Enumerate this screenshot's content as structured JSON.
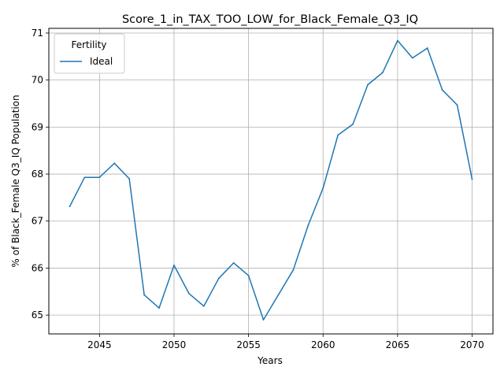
{
  "chart_data": {
    "type": "line",
    "title": "Score_1_in_TAX_TOO_LOW_for_Black_Female_Q3_IQ",
    "xlabel": "Years",
    "ylabel": "% of Black_Female Q3_IQ Population",
    "xlim": [
      2041.6,
      2071.4
    ],
    "ylim": [
      64.6,
      71.1
    ],
    "xticks": [
      2045,
      2050,
      2055,
      2060,
      2065,
      2070
    ],
    "yticks": [
      65,
      66,
      67,
      68,
      69,
      70,
      71
    ],
    "grid": true,
    "legend": {
      "title": "Fertility",
      "placement": "top-left"
    },
    "series": [
      {
        "name": "Ideal",
        "color": "#1f77b4",
        "x": [
          2043,
          2044,
          2045,
          2046,
          2047,
          2048,
          2049,
          2050,
          2051,
          2052,
          2053,
          2054,
          2055,
          2056,
          2057,
          2058,
          2059,
          2060,
          2061,
          2062,
          2063,
          2064,
          2065,
          2066,
          2067,
          2068,
          2069,
          2070
        ],
        "y": [
          67.31,
          67.93,
          67.93,
          68.23,
          67.9,
          65.43,
          65.15,
          66.06,
          65.46,
          65.19,
          65.78,
          66.11,
          65.84,
          64.9,
          65.43,
          65.96,
          66.91,
          67.7,
          68.83,
          69.06,
          69.9,
          70.16,
          70.84,
          70.47,
          70.68,
          69.79,
          69.47,
          67.89
        ]
      }
    ]
  }
}
